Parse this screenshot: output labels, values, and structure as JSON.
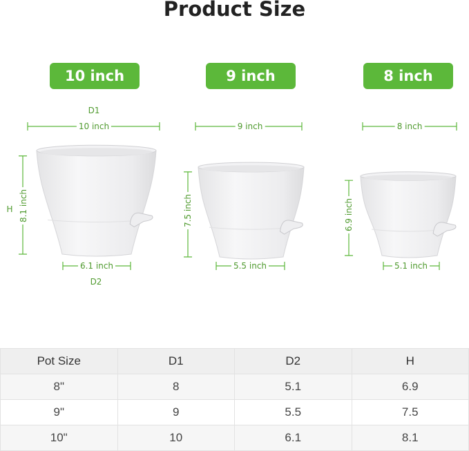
{
  "title": "Product Size",
  "accent_color": "#5cb83a",
  "pots": [
    {
      "badge": "10 inch",
      "d1": "10 inch",
      "h": "8.1 inch",
      "d2": "6.1 inch",
      "d1_tag": "D1",
      "h_tag": "H",
      "d2_tag": "D2"
    },
    {
      "badge": "9 inch",
      "d1": "9 inch",
      "h": "7.5 inch",
      "d2": "5.5 inch"
    },
    {
      "badge": "8 inch",
      "d1": "8 inch",
      "h": "6.9 inch",
      "d2": "5.1 inch"
    }
  ],
  "table": {
    "headers": [
      "Pot Size",
      "D1",
      "D2",
      "H"
    ],
    "rows": [
      [
        "8\"",
        "8",
        "5.1",
        "6.9"
      ],
      [
        "9\"",
        "9",
        "5.5",
        "7.5"
      ],
      [
        "10\"",
        "10",
        "6.1",
        "8.1"
      ]
    ]
  }
}
